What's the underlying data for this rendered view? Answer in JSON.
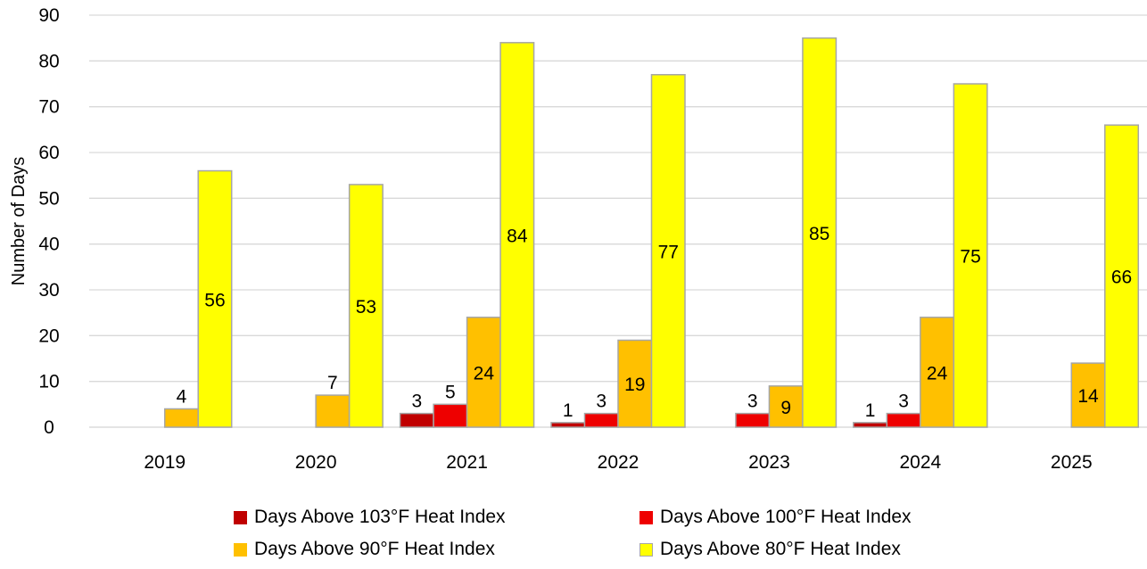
{
  "chart_data": {
    "type": "bar",
    "categories": [
      "2019",
      "2020",
      "2021",
      "2022",
      "2023",
      "2024",
      "2025"
    ],
    "series": [
      {
        "name": "Days Above 103°F Heat Index",
        "color": "#C00000",
        "values": [
          0,
          0,
          3,
          1,
          0,
          1,
          0
        ],
        "labels": [
          "",
          "",
          "3",
          "1",
          "",
          "1",
          ""
        ]
      },
      {
        "name": "Days Above 100°F Heat Index",
        "color": "#EE0000",
        "values": [
          0,
          0,
          5,
          3,
          3,
          3,
          0
        ],
        "labels": [
          "",
          "",
          "5",
          "3",
          "3",
          "3",
          ""
        ]
      },
      {
        "name": "Days Above 90°F Heat Index",
        "color": "#FFC000",
        "values": [
          4,
          7,
          24,
          19,
          9,
          24,
          14
        ],
        "labels": [
          "4",
          "7",
          "24",
          "19",
          "9",
          "24",
          "14"
        ]
      },
      {
        "name": "Days Above 80°F Heat Index",
        "color": "#FFFF00",
        "values": [
          56,
          53,
          84,
          77,
          85,
          75,
          66
        ],
        "labels": [
          "56",
          "53",
          "84",
          "77",
          "85",
          "75",
          "66"
        ]
      }
    ],
    "title": "",
    "xlabel": "",
    "ylabel": "Number of Days",
    "ylim": [
      0,
      90
    ],
    "yticks": [
      "0",
      "10",
      "20",
      "30",
      "40",
      "50",
      "60",
      "70",
      "80",
      "90"
    ],
    "grid": true,
    "legend_position": "bottom"
  }
}
